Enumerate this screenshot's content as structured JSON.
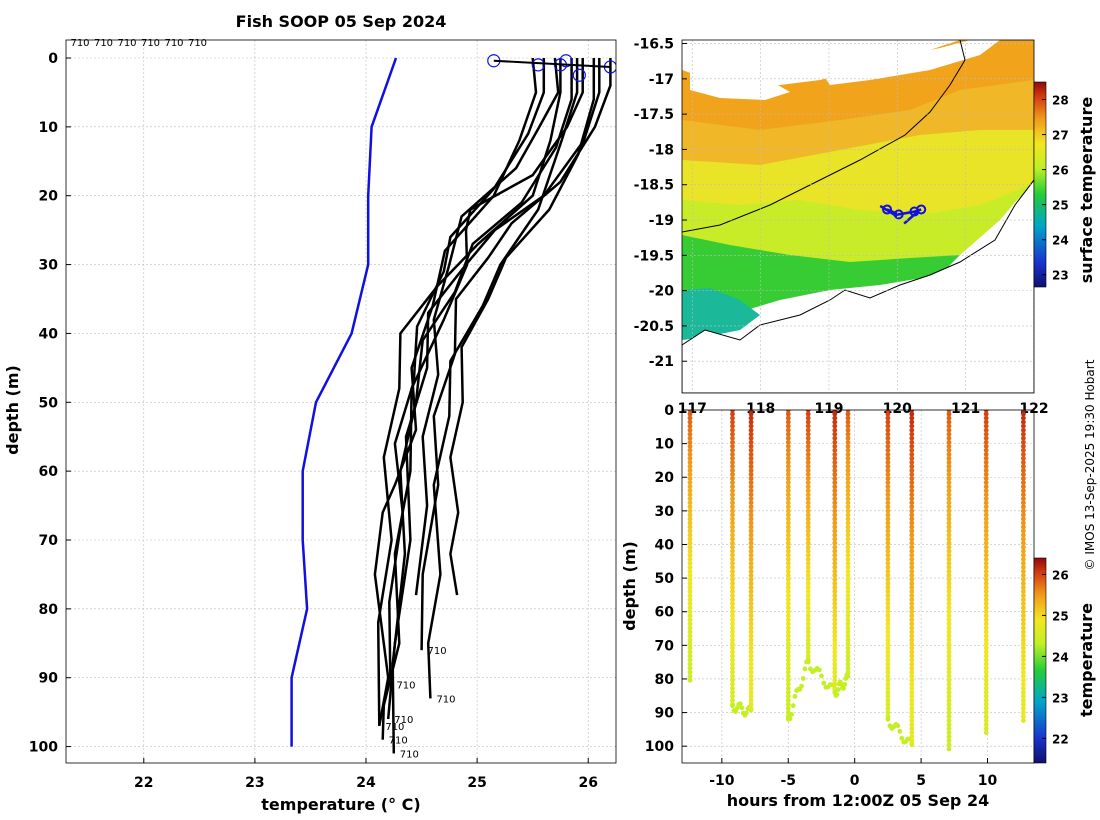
{
  "credit": "© IMOS 13-Sep-2025 19:30 Hobart",
  "chart_data": [
    {
      "type": "line",
      "name": "profile",
      "title": "Fish SOOP 05 Sep 2024",
      "xlabel": "temperature (° C)",
      "ylabel": "depth (m)",
      "xlim": [
        21.3,
        26.25
      ],
      "ylim": [
        0,
        105
      ],
      "xticks": [
        "22",
        "23",
        "24",
        "25",
        "26"
      ],
      "yticks": [
        "0",
        "10",
        "20",
        "30",
        "40",
        "50",
        "60",
        "70",
        "80",
        "90",
        "100"
      ],
      "top_labels": [
        "710",
        "710",
        "710",
        "710",
        "710",
        "710"
      ],
      "climatology": {
        "color": "#1010e0",
        "depth": [
          0,
          10,
          20,
          30,
          40,
          50,
          60,
          70,
          80,
          90,
          100
        ],
        "temp": [
          24.27,
          24.05,
          24.02,
          24.02,
          23.87,
          23.55,
          23.43,
          23.43,
          23.47,
          23.33,
          23.33
        ]
      },
      "profiles": [
        {
          "depth": [
            0,
            5,
            10,
            17,
            22,
            25,
            30,
            38,
            48,
            60,
            72,
            85,
            94,
            99
          ],
          "temp": [
            25.95,
            25.9,
            25.85,
            25.45,
            24.98,
            24.85,
            24.95,
            24.65,
            24.45,
            24.35,
            24.3,
            24.25,
            24.2,
            24.15
          ],
          "end_label": "710"
        },
        {
          "depth": [
            0,
            5,
            12,
            20,
            25,
            30,
            37,
            45,
            55,
            70,
            85,
            96
          ],
          "temp": [
            26.1,
            26.05,
            26.0,
            25.55,
            25.2,
            24.85,
            24.6,
            24.5,
            24.4,
            24.35,
            24.3,
            24.2
          ],
          "end_label": "710"
        },
        {
          "depth": [
            0,
            5,
            12,
            20,
            27,
            33,
            40,
            48,
            58,
            70,
            82,
            97
          ],
          "temp": [
            25.75,
            25.7,
            25.7,
            25.45,
            25.05,
            24.6,
            24.35,
            24.25,
            24.2,
            24.18,
            24.15,
            24.12
          ],
          "end_label": "710"
        },
        {
          "depth": [
            0,
            4,
            10,
            18,
            24,
            29,
            35,
            43,
            52,
            62,
            75,
            86
          ],
          "temp": [
            26.2,
            26.15,
            26.1,
            25.7,
            25.35,
            25.05,
            24.85,
            24.75,
            24.65,
            24.6,
            24.55,
            24.5
          ],
          "end_label": "710"
        },
        {
          "depth": [
            0,
            5,
            11,
            19,
            26,
            31,
            39,
            47,
            56,
            66,
            79,
            91
          ],
          "temp": [
            25.6,
            25.55,
            25.5,
            25.1,
            24.8,
            24.65,
            24.5,
            24.38,
            24.3,
            24.28,
            24.25,
            24.22
          ],
          "end_label": "710"
        },
        {
          "depth": [
            0,
            6,
            13,
            21,
            27,
            34,
            41,
            50,
            60,
            72,
            88,
            101
          ],
          "temp": [
            25.85,
            25.8,
            25.75,
            25.35,
            25.0,
            24.75,
            24.55,
            24.4,
            24.35,
            24.3,
            24.28,
            24.25
          ],
          "end_label": "710"
        },
        {
          "depth": [
            0,
            5,
            12,
            22,
            30,
            36,
            44,
            52,
            62,
            75,
            85,
            93
          ],
          "temp": [
            25.9,
            25.85,
            25.8,
            25.5,
            25.25,
            25.0,
            24.8,
            24.7,
            24.65,
            24.62,
            24.6,
            24.58
          ],
          "end_label": "710"
        },
        {
          "depth": [
            0,
            5,
            10,
            16,
            23,
            30,
            38,
            46,
            55,
            65,
            78
          ],
          "temp": [
            25.7,
            25.68,
            25.6,
            25.3,
            24.9,
            24.7,
            24.65,
            24.6,
            24.55,
            24.5,
            24.45
          ],
          "end_label": ""
        },
        {
          "depth": [
            0,
            6,
            14,
            22,
            29,
            35,
            42,
            50,
            58,
            66,
            72,
            78
          ],
          "temp": [
            26.05,
            26.0,
            25.95,
            25.6,
            25.3,
            25.05,
            24.9,
            24.82,
            24.8,
            24.78,
            24.8,
            24.82
          ],
          "end_label": ""
        },
        {
          "depth": [
            0,
            5,
            12,
            20,
            28,
            36,
            45,
            54,
            62,
            66,
            75,
            90,
            97
          ],
          "temp": [
            25.5,
            25.48,
            25.42,
            25.1,
            24.75,
            24.55,
            24.45,
            24.4,
            24.3,
            24.1,
            24.12,
            24.15,
            24.12
          ],
          "end_label": ""
        }
      ],
      "surface_points": [
        {
          "temp": 25.15,
          "depth": 0.4
        },
        {
          "temp": 25.55,
          "depth": 1.0
        },
        {
          "temp": 25.75,
          "depth": 1.0
        },
        {
          "temp": 25.8,
          "depth": 0.4
        },
        {
          "temp": 25.92,
          "depth": 2.5
        },
        {
          "temp": 26.2,
          "depth": 1.3
        }
      ]
    },
    {
      "type": "heatmap",
      "name": "sst-map",
      "xlabel": "",
      "ylabel": "",
      "xlim": [
        116.85,
        122.0
      ],
      "ylim": [
        -21.45,
        -16.45
      ],
      "xticks": [
        "117",
        "118",
        "119",
        "120",
        "121",
        "122"
      ],
      "yticks": [
        "-16.5",
        "-17",
        "-17.5",
        "-18",
        "-18.5",
        "-19",
        "-19.5",
        "-20",
        "-20.5",
        "-21"
      ],
      "colorbar_label": "surface temperature",
      "colorbar_ticks": [
        "23",
        "24",
        "25",
        "26",
        "27",
        "28"
      ],
      "colorbar_range": [
        22.65,
        28.5
      ],
      "track_color": "#1010e0",
      "track": [
        {
          "lon": 119.85,
          "lat": -18.85
        },
        {
          "lon": 120.02,
          "lat": -18.92
        },
        {
          "lon": 120.25,
          "lat": -18.88
        },
        {
          "lon": 120.35,
          "lat": -18.85
        }
      ]
    },
    {
      "type": "scatter",
      "name": "section",
      "xlabel": "hours from 12:00Z 05 Sep 24",
      "ylabel": "depth (m)",
      "xlim": [
        -13,
        13.5
      ],
      "ylim": [
        0,
        105
      ],
      "xticks": [
        "-10",
        "-5",
        "0",
        "5",
        "10"
      ],
      "yticks": [
        "0",
        "10",
        "20",
        "30",
        "40",
        "50",
        "60",
        "70",
        "80",
        "90",
        "100"
      ],
      "colorbar_label": "temperature",
      "colorbar_ticks": [
        "22",
        "23",
        "24",
        "25",
        "26"
      ],
      "colorbar_range": [
        21.4,
        26.4
      ],
      "casts": [
        {
          "hour": -12.4,
          "max_depth": 81
        },
        {
          "hour": -9.2,
          "max_depth": 88
        },
        {
          "hour": -7.8,
          "max_depth": 90
        },
        {
          "hour": -5.0,
          "max_depth": 92
        },
        {
          "hour": -3.5,
          "max_depth": 75
        },
        {
          "hour": -1.5,
          "max_depth": 84
        },
        {
          "hour": -0.5,
          "max_depth": 80
        },
        {
          "hour": 2.5,
          "max_depth": 92
        },
        {
          "hour": 4.3,
          "max_depth": 100
        },
        {
          "hour": 7.1,
          "max_depth": 102
        },
        {
          "hour": 9.9,
          "max_depth": 97
        },
        {
          "hour": 12.7,
          "max_depth": 93
        }
      ]
    }
  ]
}
